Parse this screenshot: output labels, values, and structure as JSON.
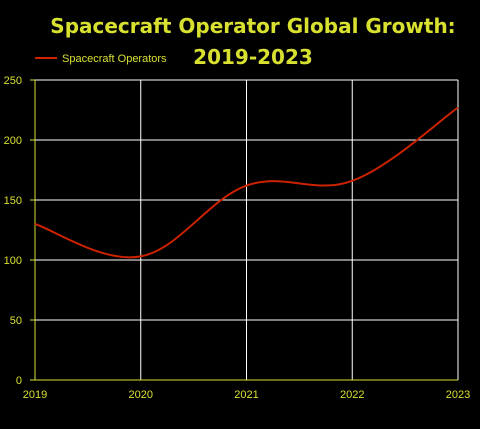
{
  "chart_data": {
    "type": "line",
    "title_lines": [
      "Spacecraft Operator Global Growth:",
      "2019-2023"
    ],
    "xlabel": "",
    "ylabel": "",
    "x": [
      2019,
      2020,
      2021,
      2022,
      2023
    ],
    "x_tick_labels": [
      "2019",
      "2020",
      "2021",
      "2022",
      "2023"
    ],
    "y_tick_labels": [
      "0",
      "50",
      "100",
      "150",
      "200",
      "250"
    ],
    "y_ticks": [
      0,
      50,
      100,
      150,
      200,
      250
    ],
    "xlim": [
      2019,
      2023
    ],
    "ylim": [
      0,
      250
    ],
    "grid": true,
    "legend_position": "top-left",
    "series": [
      {
        "name": "Spacecraft Operators",
        "values": [
          130,
          103,
          162,
          166,
          227
        ],
        "color": "#cc2200"
      }
    ],
    "colors": {
      "background": "#000000",
      "text": "#d8e030",
      "grid": "#ffffff",
      "axis": "#d8e030"
    }
  }
}
